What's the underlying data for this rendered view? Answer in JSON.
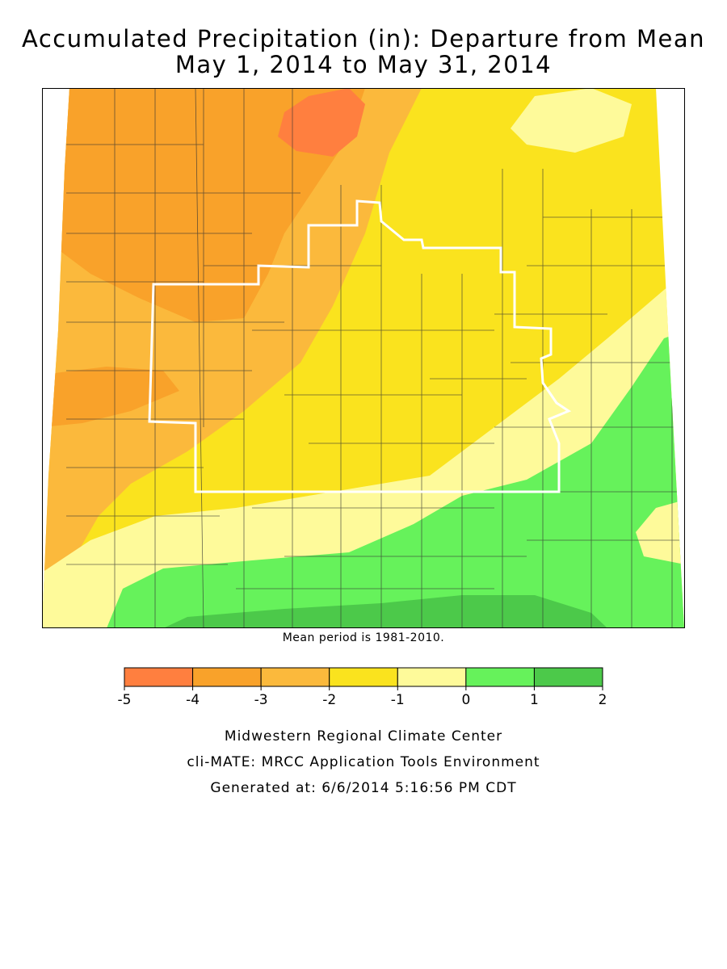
{
  "title": {
    "line1": "Accumulated Precipitation (in): Departure from Mean",
    "line2": "May 1, 2014 to May 31, 2014"
  },
  "note": "Mean period is 1981-2010.",
  "legend": {
    "bins": [
      {
        "min": -5,
        "max": -4,
        "color": "#ff7f3f"
      },
      {
        "min": -4,
        "max": -3,
        "color": "#f9a22a"
      },
      {
        "min": -3,
        "max": -2,
        "color": "#fbb93c"
      },
      {
        "min": -2,
        "max": -1,
        "color": "#fae31e"
      },
      {
        "min": -1,
        "max": 0,
        "color": "#fefa9a"
      },
      {
        "min": 0,
        "max": 1,
        "color": "#66f25b"
      },
      {
        "min": 1,
        "max": 2,
        "color": "#4cc94a"
      }
    ],
    "tick_labels": [
      "-5",
      "-4",
      "-3",
      "-2",
      "-1",
      "0",
      "1",
      "2"
    ]
  },
  "footer": {
    "org": "Midwestern Regional Climate Center",
    "tool": "cli-MATE: MRCC Application Tools Environment",
    "generated": "Generated at: 6/6/2014 5:16:56 PM CDT"
  }
}
